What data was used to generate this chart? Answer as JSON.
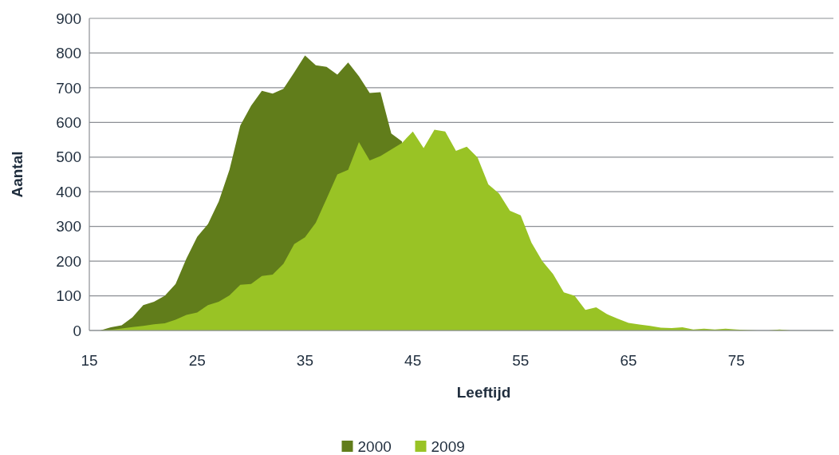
{
  "chart_data": {
    "type": "area",
    "xlabel": "Leeftijd",
    "ylabel": "Aantal",
    "x": [
      16,
      17,
      18,
      19,
      20,
      21,
      22,
      23,
      24,
      25,
      26,
      27,
      28,
      29,
      30,
      31,
      32,
      33,
      34,
      35,
      36,
      37,
      38,
      39,
      40,
      41,
      42,
      43,
      44,
      45,
      46,
      47,
      48,
      49,
      50,
      51,
      52,
      53,
      54,
      55,
      56,
      57,
      58,
      59,
      60,
      61,
      62,
      63,
      64,
      65,
      66,
      67,
      68,
      69,
      70,
      71,
      72,
      73,
      74,
      75,
      76,
      77,
      78,
      79,
      80
    ],
    "series": [
      {
        "name": "2000",
        "color": "#617d1b",
        "values": [
          0,
          9,
          15,
          38,
          73,
          83,
          100,
          134,
          207,
          270,
          307,
          372,
          464,
          591,
          648,
          691,
          683,
          697,
          744,
          793,
          765,
          760,
          738,
          773,
          733,
          685,
          687,
          568,
          545,
          null,
          null,
          null,
          null,
          null,
          null,
          null,
          null,
          null,
          null,
          null,
          null,
          null,
          null,
          null,
          null,
          null,
          null,
          null,
          null,
          null,
          null,
          null,
          null,
          null,
          null,
          null,
          null,
          null,
          null,
          null,
          null,
          null,
          null,
          null,
          null
        ]
      },
      {
        "name": "2009",
        "color": "#99c325",
        "values": [
          0,
          2,
          6,
          10,
          13,
          18,
          21,
          31,
          45,
          52,
          73,
          83,
          101,
          132,
          134,
          157,
          161,
          192,
          249,
          269,
          311,
          380,
          450,
          463,
          543,
          490,
          503,
          522,
          541,
          574,
          526,
          579,
          574,
          518,
          530,
          499,
          421,
          395,
          345,
          332,
          253,
          200,
          163,
          110,
          100,
          59,
          67,
          47,
          34,
          22,
          17,
          13,
          8,
          7,
          9,
          3,
          5,
          3,
          5,
          3,
          1,
          0,
          0,
          3,
          0
        ]
      }
    ],
    "xlim": [
      15,
      84
    ],
    "xticks": [
      15,
      25,
      35,
      45,
      55,
      65,
      75
    ],
    "ylim": [
      0,
      900
    ],
    "yticks": [
      0,
      100,
      200,
      300,
      400,
      500,
      600,
      700,
      800,
      900
    ],
    "grid": "y",
    "legend": "bottom"
  }
}
